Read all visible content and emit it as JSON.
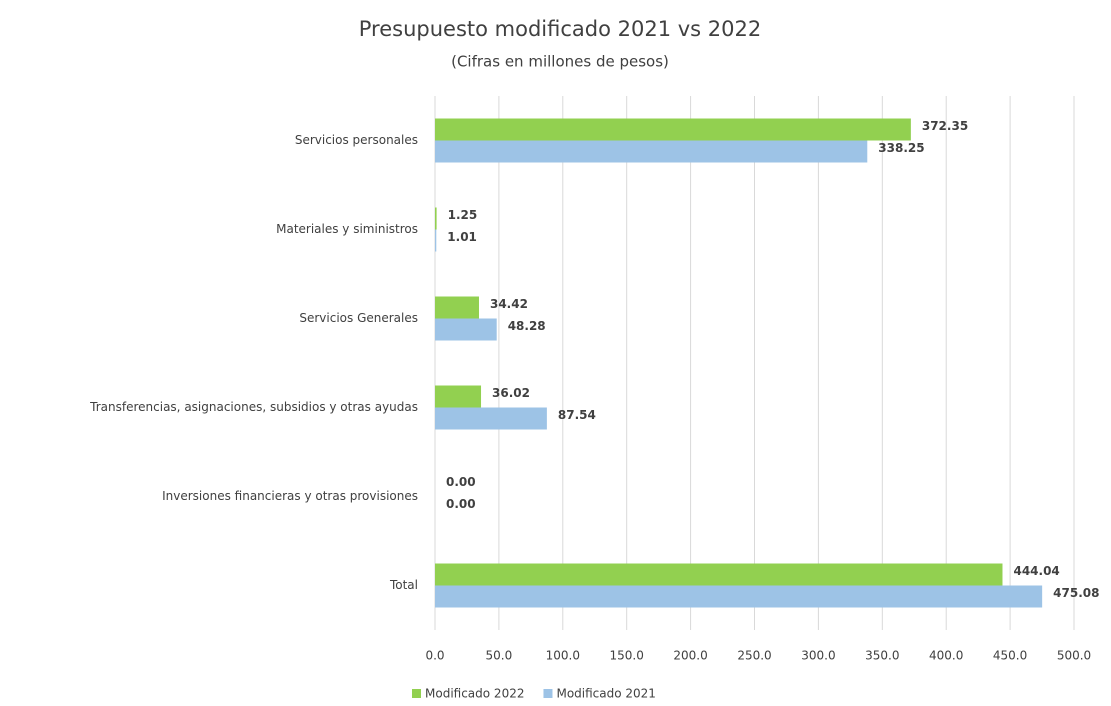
{
  "chart_data": {
    "type": "hbar",
    "title": "Presupuesto modificado 2021 vs 2022",
    "subtitle": "(Cifras en millones de pesos)",
    "categories": [
      "Servicios personales",
      "Materiales y siministros",
      "Servicios Generales",
      "Transferencias, asignaciones, subsidios y otras ayudas",
      "Inversiones financieras y otras provisiones",
      "Total"
    ],
    "series": [
      {
        "name": "Modificado 2022",
        "color": "#92d050",
        "values": [
          372.35,
          1.25,
          34.42,
          36.02,
          0,
          444.04
        ],
        "value_labels": [
          "372.35",
          "1.25",
          "34.42",
          "36.02",
          "0.00",
          "444.04"
        ]
      },
      {
        "name": "Modificado 2021",
        "color": "#9dc3e6",
        "values": [
          338.25,
          1.01,
          48.28,
          87.54,
          0,
          475.08
        ],
        "value_labels": [
          "338.25",
          "1.01",
          "48.28",
          "87.54",
          "0.00",
          "475.08"
        ]
      }
    ],
    "xlim": [
      0,
      500
    ],
    "xticks": [
      {
        "value": 0,
        "label": "0.0"
      },
      {
        "value": 50,
        "label": "50.0"
      },
      {
        "value": 100,
        "label": "100.0"
      },
      {
        "value": 150,
        "label": "150.0"
      },
      {
        "value": 200,
        "label": "200.0"
      },
      {
        "value": 250,
        "label": "250.0"
      },
      {
        "value": 300,
        "label": "300.0"
      },
      {
        "value": 350,
        "label": "350.0"
      },
      {
        "value": 400,
        "label": "400.0"
      },
      {
        "value": 450,
        "label": "450.0"
      },
      {
        "value": 500,
        "label": "500.0"
      }
    ],
    "grid": true,
    "legend": "bottom"
  }
}
